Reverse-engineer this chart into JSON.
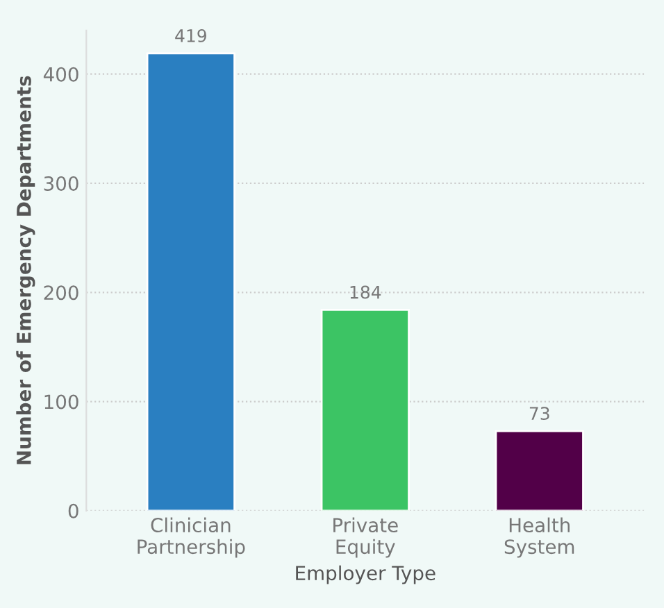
{
  "chart_data": {
    "type": "bar",
    "xlabel": "Employer Type",
    "ylabel": "Number of Emergency Departments",
    "categories": [
      "Clinician Partnership",
      "Private Equity",
      "Health System"
    ],
    "values": [
      419,
      184,
      73
    ],
    "colors": [
      "#2a7fc1",
      "#3cc464",
      "#520048"
    ],
    "ylim": [
      0,
      440
    ],
    "yticks": [
      0,
      100,
      200,
      300,
      400
    ],
    "grid": "y",
    "data_labels": true
  }
}
